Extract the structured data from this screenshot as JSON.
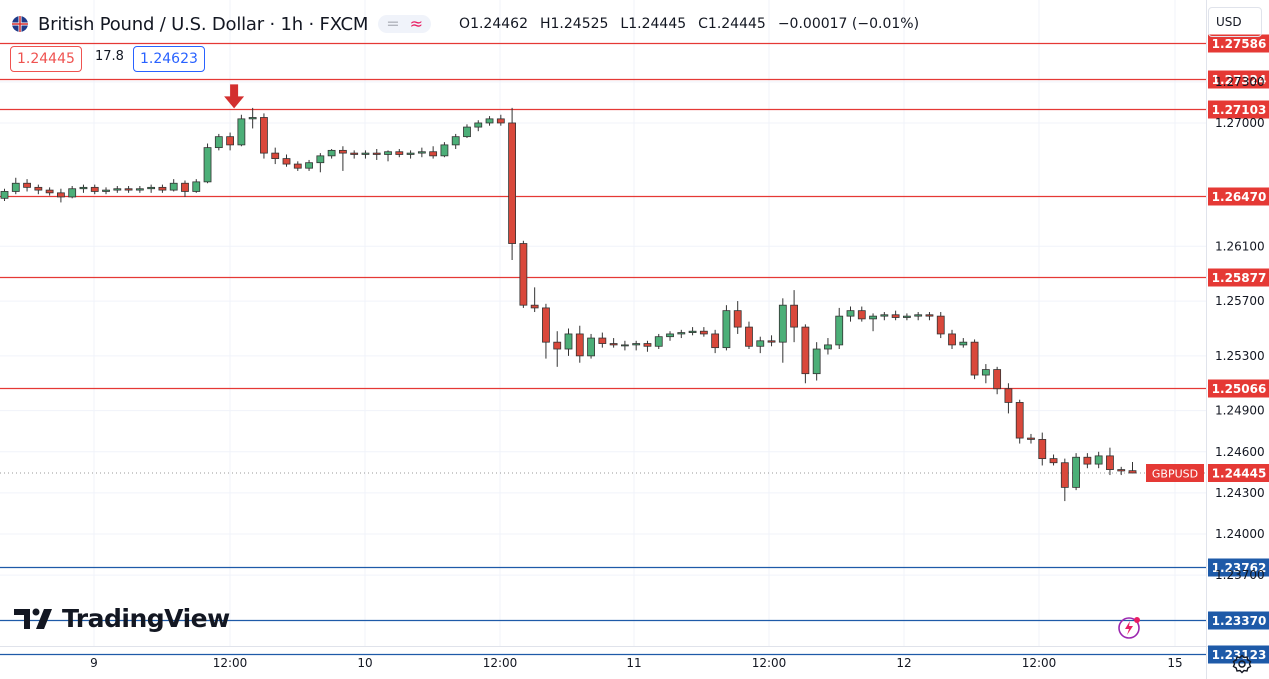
{
  "header": {
    "symbol_title": "British Pound / U.S. Dollar · 1h · FXCM",
    "open_label": "O",
    "open": "1.24462",
    "high_label": "H",
    "high": "1.24525",
    "low_label": "L",
    "low": "1.24445",
    "close_label": "C",
    "close": "1.24445",
    "change": "−0.00017 (−0.01%)"
  },
  "trade": {
    "sell_price": "1.24445",
    "spread": "17.8",
    "buy_price": "1.24623"
  },
  "currency_button": "USD",
  "logo_text": "TradingView",
  "icons": {
    "flag": "uk-us-flag-icon",
    "settings": "gear-icon",
    "alert": "lightning-icon",
    "arrow": "down-arrow-marker-icon"
  },
  "colors": {
    "up": "#26a69a",
    "up_body": "#4caf78",
    "down": "#ef5350",
    "down_body": "#d9483b",
    "line_red": "#e53935",
    "line_blue": "#1e5aa8",
    "label_red": "#e53935"
  },
  "chart_data": {
    "type": "candlestick",
    "timeframe": "1h",
    "symbol_tag": "GBPUSD",
    "last_price": 1.24445,
    "ylim": [
      1.2305,
      1.277
    ],
    "y_ticks": [
      "1.27300",
      "1.27000",
      "1.26100",
      "1.25700",
      "1.25300",
      "1.24900",
      "1.24600",
      "1.24300",
      "1.24000",
      "1.23700"
    ],
    "x_ticks": [
      "9",
      "12:00",
      "10",
      "12:00",
      "11",
      "12:00",
      "12",
      "12:00",
      "15"
    ],
    "horizontal_levels": [
      {
        "price": 1.27586,
        "label": "1.27586",
        "color": "red"
      },
      {
        "price": 1.27324,
        "label": "1.27324",
        "color": "red"
      },
      {
        "price": 1.27103,
        "label": "1.27103",
        "color": "red"
      },
      {
        "price": 1.2647,
        "label": "1.26470",
        "color": "red"
      },
      {
        "price": 1.25877,
        "label": "1.25877",
        "color": "red"
      },
      {
        "price": 1.25066,
        "label": "1.25066",
        "color": "red"
      },
      {
        "price": 1.23762,
        "label": "1.23762",
        "color": "blue"
      },
      {
        "price": 1.2337,
        "label": "1.23370",
        "color": "blue"
      },
      {
        "price": 1.23123,
        "label": "1.23123",
        "color": "blue"
      }
    ],
    "arrow_marker_candle": 20,
    "candles": [
      [
        1.2645,
        1.2652,
        1.2643,
        1.265
      ],
      [
        1.265,
        1.266,
        1.2648,
        1.2656
      ],
      [
        1.2656,
        1.2659,
        1.265,
        1.2653
      ],
      [
        1.2653,
        1.2655,
        1.2648,
        1.2651
      ],
      [
        1.2651,
        1.2653,
        1.2647,
        1.2649
      ],
      [
        1.2649,
        1.2652,
        1.2642,
        1.2646
      ],
      [
        1.2646,
        1.2654,
        1.2645,
        1.2652
      ],
      [
        1.2652,
        1.2655,
        1.2649,
        1.2653
      ],
      [
        1.2653,
        1.2655,
        1.2648,
        1.265
      ],
      [
        1.265,
        1.2653,
        1.2648,
        1.2651
      ],
      [
        1.2651,
        1.2654,
        1.2649,
        1.2652
      ],
      [
        1.2652,
        1.2654,
        1.2649,
        1.2651
      ],
      [
        1.2651,
        1.2654,
        1.2649,
        1.2652
      ],
      [
        1.2652,
        1.2655,
        1.2649,
        1.2653
      ],
      [
        1.2653,
        1.2655,
        1.2649,
        1.2651
      ],
      [
        1.2651,
        1.2659,
        1.265,
        1.2656
      ],
      [
        1.2656,
        1.2658,
        1.2646,
        1.265
      ],
      [
        1.265,
        1.2659,
        1.2649,
        1.2657
      ],
      [
        1.2657,
        1.2685,
        1.2656,
        1.2682
      ],
      [
        1.2682,
        1.2692,
        1.268,
        1.269
      ],
      [
        1.269,
        1.2693,
        1.268,
        1.2684
      ],
      [
        1.2684,
        1.2706,
        1.2683,
        1.2703
      ],
      [
        1.2703,
        1.2711,
        1.2696,
        1.2704
      ],
      [
        1.2704,
        1.2707,
        1.2674,
        1.2678
      ],
      [
        1.2678,
        1.2682,
        1.267,
        1.2674
      ],
      [
        1.2674,
        1.2677,
        1.2668,
        1.267
      ],
      [
        1.267,
        1.2672,
        1.2665,
        1.2667
      ],
      [
        1.2667,
        1.2673,
        1.2665,
        1.2671
      ],
      [
        1.2671,
        1.2678,
        1.2664,
        1.2676
      ],
      [
        1.2676,
        1.2681,
        1.2674,
        1.268
      ],
      [
        1.268,
        1.2683,
        1.2665,
        1.2678
      ],
      [
        1.2678,
        1.268,
        1.2674,
        1.2677
      ],
      [
        1.2677,
        1.268,
        1.2674,
        1.2678
      ],
      [
        1.2678,
        1.2681,
        1.2673,
        1.2677
      ],
      [
        1.2677,
        1.268,
        1.2672,
        1.2679
      ],
      [
        1.2679,
        1.2681,
        1.2675,
        1.2677
      ],
      [
        1.2677,
        1.268,
        1.2674,
        1.2678
      ],
      [
        1.2678,
        1.2682,
        1.2675,
        1.2679
      ],
      [
        1.2679,
        1.2683,
        1.2674,
        1.2676
      ],
      [
        1.2676,
        1.2686,
        1.2675,
        1.2684
      ],
      [
        1.2684,
        1.2692,
        1.2681,
        1.269
      ],
      [
        1.269,
        1.2699,
        1.2689,
        1.2697
      ],
      [
        1.2697,
        1.2702,
        1.2694,
        1.27
      ],
      [
        1.27,
        1.2705,
        1.2698,
        1.2703
      ],
      [
        1.2703,
        1.2706,
        1.2698,
        1.27
      ],
      [
        1.27,
        1.2711,
        1.26,
        1.2612
      ],
      [
        1.2612,
        1.2614,
        1.2565,
        1.2567
      ],
      [
        1.2567,
        1.258,
        1.2562,
        1.2565
      ],
      [
        1.2565,
        1.2568,
        1.2528,
        1.254
      ],
      [
        1.254,
        1.2548,
        1.2522,
        1.2535
      ],
      [
        1.2535,
        1.255,
        1.253,
        1.2546
      ],
      [
        1.2546,
        1.2552,
        1.2525,
        1.253
      ],
      [
        1.253,
        1.2546,
        1.2528,
        1.2543
      ],
      [
        1.2543,
        1.2547,
        1.2536,
        1.2539
      ],
      [
        1.2539,
        1.2543,
        1.2536,
        1.2538
      ],
      [
        1.2538,
        1.2541,
        1.2534,
        1.2538
      ],
      [
        1.2538,
        1.2541,
        1.2534,
        1.2539
      ],
      [
        1.2539,
        1.2541,
        1.2533,
        1.2537
      ],
      [
        1.2537,
        1.2546,
        1.2535,
        1.2544
      ],
      [
        1.2544,
        1.2548,
        1.2541,
        1.2546
      ],
      [
        1.2546,
        1.2549,
        1.2543,
        1.2547
      ],
      [
        1.2547,
        1.2551,
        1.2545,
        1.2548
      ],
      [
        1.2548,
        1.2551,
        1.2544,
        1.2546
      ],
      [
        1.2546,
        1.2549,
        1.2532,
        1.2536
      ],
      [
        1.2536,
        1.2567,
        1.2534,
        1.2563
      ],
      [
        1.2563,
        1.257,
        1.2546,
        1.2551
      ],
      [
        1.2551,
        1.2555,
        1.2535,
        1.2537
      ],
      [
        1.2537,
        1.2544,
        1.2532,
        1.2541
      ],
      [
        1.2541,
        1.2545,
        1.2537,
        1.254
      ],
      [
        1.254,
        1.2572,
        1.2525,
        1.2567
      ],
      [
        1.2567,
        1.2578,
        1.254,
        1.2551
      ],
      [
        1.2551,
        1.2553,
        1.251,
        1.2517
      ],
      [
        1.2517,
        1.254,
        1.2512,
        1.2535
      ],
      [
        1.2535,
        1.2543,
        1.2531,
        1.2538
      ],
      [
        1.2538,
        1.2565,
        1.2535,
        1.2559
      ],
      [
        1.2559,
        1.2566,
        1.2555,
        1.2563
      ],
      [
        1.2563,
        1.2566,
        1.2555,
        1.2557
      ],
      [
        1.2557,
        1.2561,
        1.2548,
        1.2559
      ],
      [
        1.2559,
        1.2562,
        1.2556,
        1.256
      ],
      [
        1.256,
        1.2563,
        1.2556,
        1.2558
      ],
      [
        1.2558,
        1.2561,
        1.2556,
        1.2559
      ],
      [
        1.2559,
        1.2562,
        1.2556,
        1.256
      ],
      [
        1.256,
        1.2562,
        1.2556,
        1.2559
      ],
      [
        1.2559,
        1.2562,
        1.2543,
        1.2546
      ],
      [
        1.2546,
        1.2549,
        1.2535,
        1.2538
      ],
      [
        1.2538,
        1.2543,
        1.2536,
        1.254
      ],
      [
        1.254,
        1.2542,
        1.2513,
        1.2516
      ],
      [
        1.2516,
        1.2524,
        1.251,
        1.252
      ],
      [
        1.252,
        1.2522,
        1.2502,
        1.2506
      ],
      [
        1.2506,
        1.251,
        1.2488,
        1.2496
      ],
      [
        1.2496,
        1.2498,
        1.2466,
        1.247
      ],
      [
        1.247,
        1.2473,
        1.2466,
        1.2469
      ],
      [
        1.2469,
        1.2474,
        1.245,
        1.2455
      ],
      [
        1.2455,
        1.2458,
        1.245,
        1.2452
      ],
      [
        1.2452,
        1.2455,
        1.2424,
        1.2434
      ],
      [
        1.2434,
        1.2459,
        1.2432,
        1.2456
      ],
      [
        1.2456,
        1.2459,
        1.2448,
        1.2451
      ],
      [
        1.2451,
        1.246,
        1.2448,
        1.2457
      ],
      [
        1.2457,
        1.2463,
        1.2443,
        1.2447
      ],
      [
        1.2447,
        1.2449,
        1.2443,
        1.2446
      ],
      [
        1.24462,
        1.24525,
        1.24445,
        1.24445
      ]
    ]
  }
}
